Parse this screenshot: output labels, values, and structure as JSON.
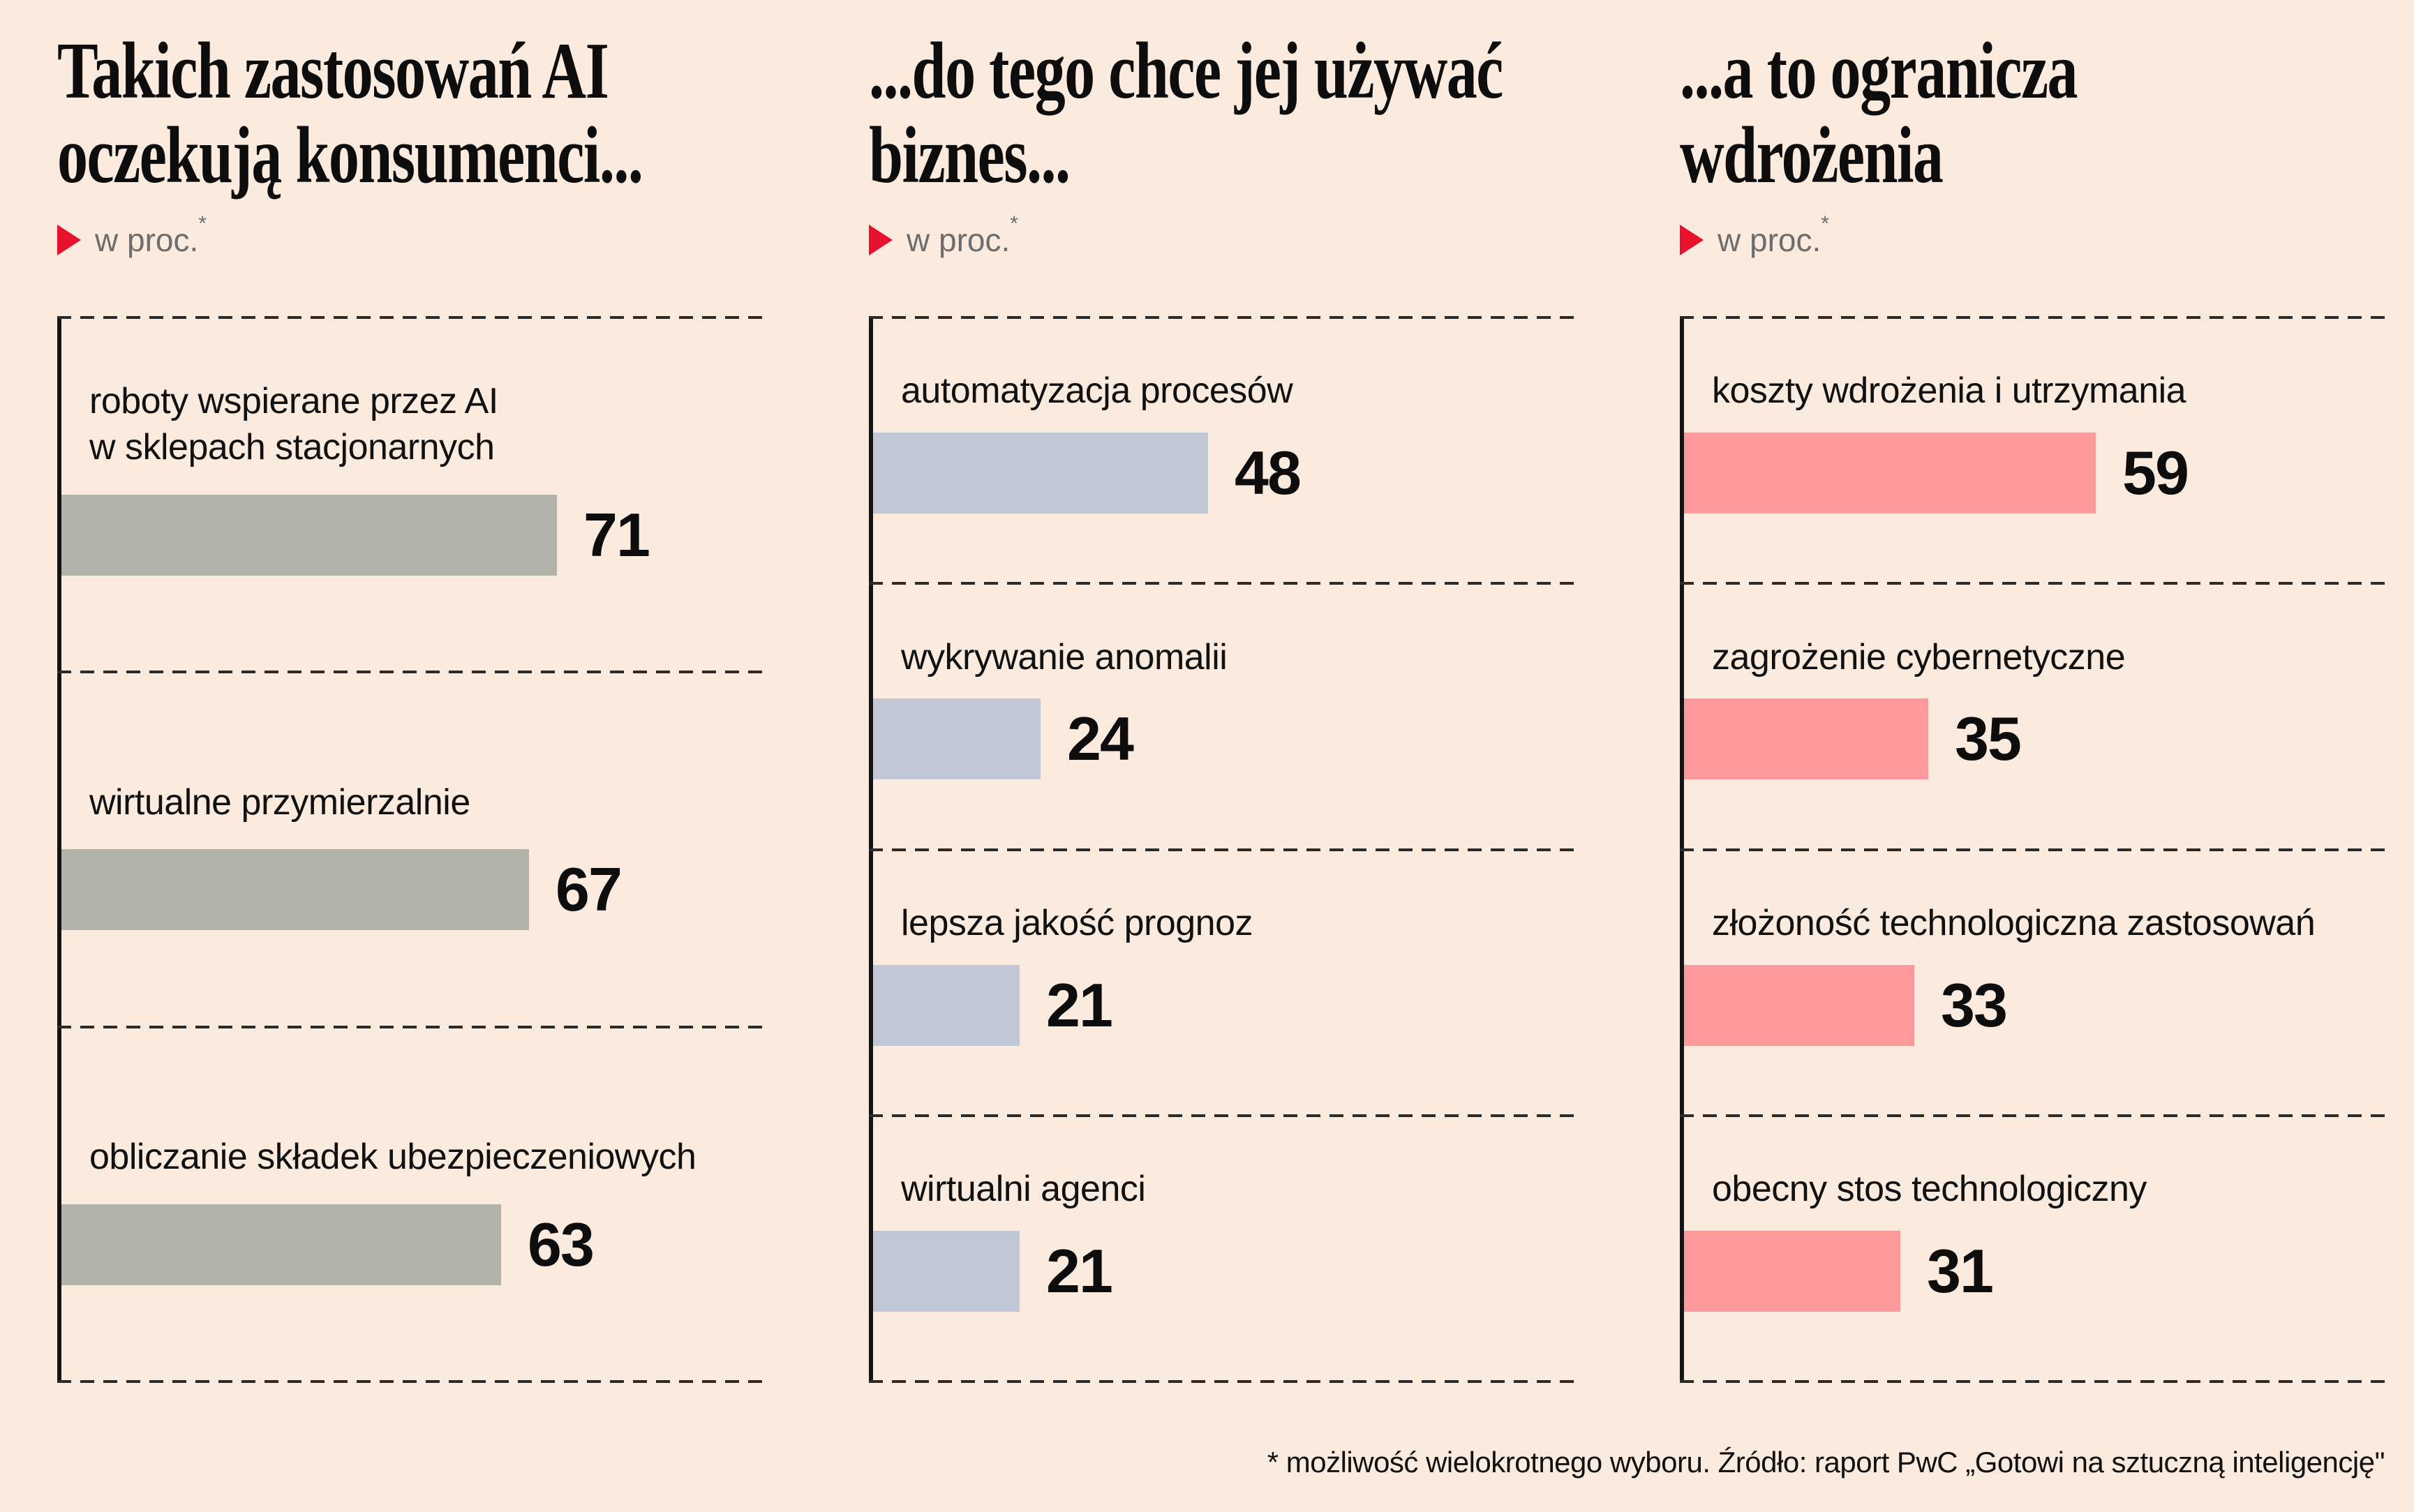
{
  "colors": {
    "background": "#fbebde",
    "accent_red": "#e8112d",
    "text": "#111111",
    "muted_text": "#6d6d6d",
    "bar_gray": "#b2b3ab",
    "bar_blue": "#c2c7d6",
    "bar_pink": "#fd999b"
  },
  "footnote": "* możliwość wielokrotnego wyboru. Źródło: raport PwC „Gotowi na sztuczną inteligencję\"",
  "chart_data": [
    {
      "type": "bar",
      "orientation": "horizontal",
      "title": "Takich zastosowań AI\noczekują konsumenci...",
      "unit_label": "w proc.",
      "unit_sup": "*",
      "bar_color": "#b2b3ab",
      "xlim": [
        0,
        100
      ],
      "grid": false,
      "legend": false,
      "value_labels": true,
      "categories": [
        "roboty wspierane przez AI\nw sklepach stacjonarnych",
        "wirtualne przymierzalnie",
        "obliczanie składek ubezpieczeniowych"
      ],
      "values": [
        71,
        67,
        63
      ]
    },
    {
      "type": "bar",
      "orientation": "horizontal",
      "title": "...do tego chce jej używać\nbiznes...",
      "unit_label": "w proc.",
      "unit_sup": "*",
      "bar_color": "#c2c7d6",
      "xlim": [
        0,
        100
      ],
      "grid": false,
      "legend": false,
      "value_labels": true,
      "categories": [
        "automatyzacja procesów",
        "wykrywanie anomalii",
        "lepsza jakość prognoz",
        "wirtualni agenci"
      ],
      "values": [
        48,
        24,
        21,
        21
      ]
    },
    {
      "type": "bar",
      "orientation": "horizontal",
      "title": "...a to ogranicza\nwdrożenia",
      "unit_label": "w proc.",
      "unit_sup": "*",
      "bar_color": "#fd999b",
      "xlim": [
        0,
        100
      ],
      "grid": false,
      "legend": false,
      "value_labels": true,
      "categories": [
        "koszty wdrożenia i utrzymania",
        "zagrożenie cybernetyczne",
        "złożoność technologiczna zastosowań",
        "obecny stos technologiczny"
      ],
      "values": [
        59,
        35,
        33,
        31
      ]
    }
  ]
}
